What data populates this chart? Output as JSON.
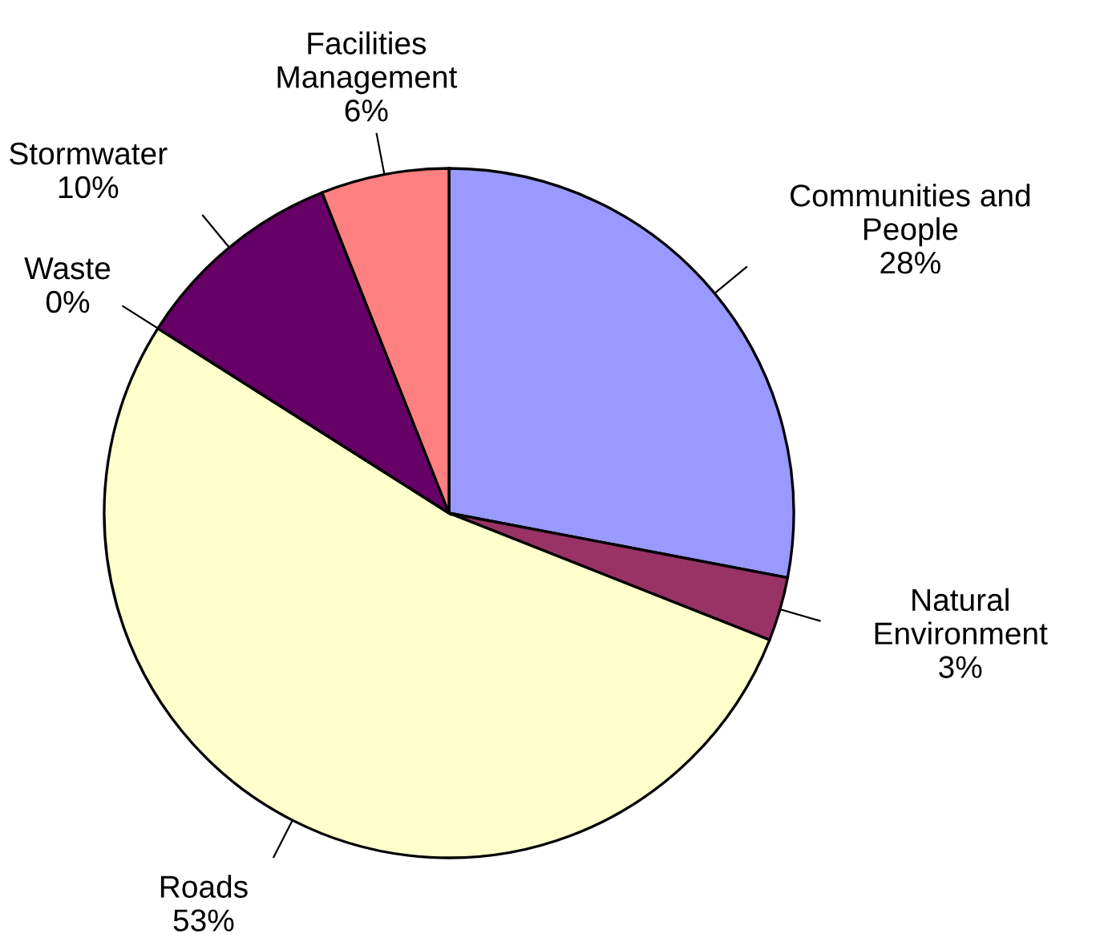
{
  "chart_data": {
    "type": "pie",
    "categories": [
      "Communities and\nPeople",
      "Natural\nEnvironment",
      "Roads",
      "Waste",
      "Stormwater",
      "Facilities\nManagement"
    ],
    "values": [
      28,
      3,
      53,
      0,
      10,
      6
    ],
    "value_labels": [
      "28%",
      "3%",
      "53%",
      "0%",
      "10%",
      "6%"
    ],
    "colors": [
      "#9999ff",
      "#993366",
      "#ffffcc",
      "#ccffff",
      "#660066",
      "#ff8080"
    ],
    "legend": false
  }
}
